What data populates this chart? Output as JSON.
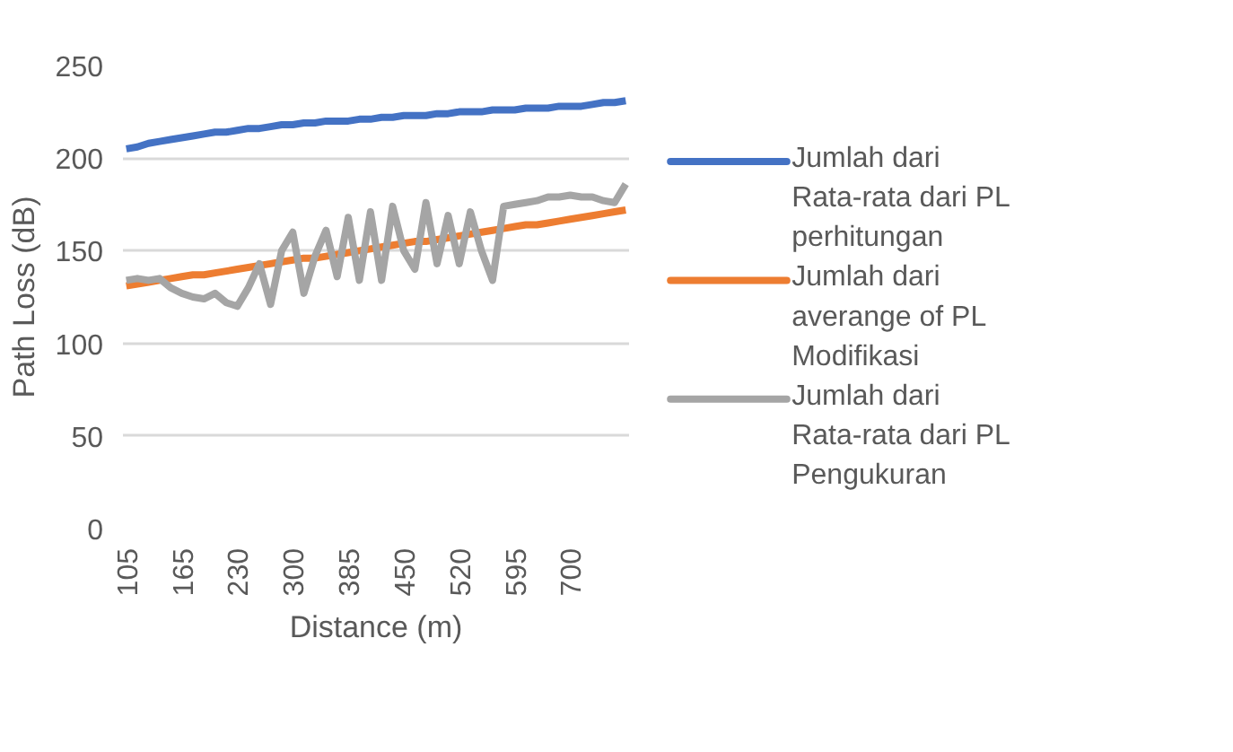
{
  "chart_data": {
    "type": "line",
    "xlabel": "Distance (m)",
    "ylabel": "Path Loss (dB)",
    "categories": [
      "105",
      null,
      null,
      null,
      null,
      "165",
      null,
      null,
      null,
      null,
      "230",
      null,
      null,
      null,
      null,
      "300",
      null,
      null,
      null,
      null,
      "385",
      null,
      null,
      null,
      null,
      "450",
      null,
      null,
      null,
      null,
      "520",
      null,
      null,
      null,
      null,
      "595",
      null,
      null,
      null,
      null,
      "700",
      null,
      null,
      null,
      null,
      null
    ],
    "ylim": [
      0,
      250
    ],
    "yticks": [
      0,
      50,
      100,
      150,
      200,
      250
    ],
    "grid": "y",
    "legend": "right",
    "marker": "none",
    "line_style": "solid",
    "series": [
      {
        "name": "Jumlah dari Rata-rata dari PL perhitungan",
        "color": "#4472c4",
        "values": [
          205,
          206,
          208,
          209,
          210,
          211,
          212,
          213,
          214,
          214,
          215,
          216,
          216,
          217,
          218,
          218,
          219,
          219,
          220,
          220,
          220,
          221,
          221,
          222,
          222,
          223,
          223,
          223,
          224,
          224,
          225,
          225,
          225,
          226,
          226,
          226,
          227,
          227,
          227,
          228,
          228,
          228,
          229,
          230,
          230,
          231
        ]
      },
      {
        "name": "Jumlah dari averange of PL Modifikasi",
        "color": "#ed7d31",
        "values": [
          131,
          132,
          133,
          134,
          135,
          136,
          137,
          137,
          138,
          139,
          140,
          141,
          142,
          143,
          144,
          145,
          146,
          146,
          147,
          148,
          149,
          150,
          151,
          152,
          153,
          154,
          155,
          155,
          156,
          157,
          158,
          159,
          160,
          161,
          162,
          163,
          164,
          164,
          165,
          166,
          167,
          168,
          169,
          170,
          171,
          172
        ]
      },
      {
        "name": "Jumlah dari Rata-rata dari PL Pengukuran",
        "color": "#a5a5a5",
        "values": [
          134,
          135,
          134,
          135,
          130,
          127,
          125,
          124,
          127,
          122,
          120,
          130,
          143,
          121,
          150,
          160,
          127,
          147,
          161,
          136,
          168,
          134,
          171,
          134,
          174,
          150,
          140,
          176,
          143,
          169,
          143,
          171,
          150,
          134,
          174,
          175,
          176,
          177,
          179,
          179,
          180,
          179,
          179,
          177,
          176,
          186
        ]
      }
    ]
  }
}
